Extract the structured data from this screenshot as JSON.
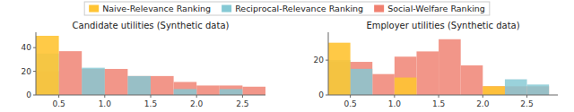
{
  "chart_data": [
    {
      "type": "histogram",
      "title": "Candidate utilities (Synthetic data)",
      "bins": [
        0.25,
        0.5,
        0.75,
        1.0,
        1.25,
        1.5,
        1.75,
        2.0,
        2.25,
        2.5,
        2.75
      ],
      "series": [
        {
          "name": "Naive-Relevance Ranking",
          "color": "#FFC433",
          "values": [
            50,
            0,
            0,
            0,
            0,
            0,
            0,
            0,
            0,
            0
          ]
        },
        {
          "name": "Reciprocal-Relevance Ranking",
          "color": "#85C9D4",
          "values": [
            35,
            0,
            23,
            0,
            16,
            0,
            5,
            0,
            5,
            0
          ]
        },
        {
          "name": "Social-Welfare Ranking",
          "color": "#F08070",
          "values": [
            20,
            37,
            22,
            22,
            16,
            16,
            11,
            8,
            8,
            7
          ]
        }
      ],
      "xlim": [
        0.25,
        2.75
      ],
      "xticks": [
        0.5,
        {
          "value": 1,
          "label": "1.0"
        },
        1.5,
        {
          "value": 2,
          "label": "2.0"
        },
        2.5
      ],
      "ylim": [
        0,
        53
      ],
      "yticks": [
        0,
        20,
        40
      ],
      "grid": false,
      "legend": "top"
    },
    {
      "type": "histogram",
      "title": "Employer utilities (Synthetic data)",
      "bins": [
        0.25,
        0.5,
        0.75,
        1.0,
        1.25,
        1.5,
        1.75,
        2.0,
        2.25,
        2.5,
        2.75
      ],
      "series": [
        {
          "name": "Naive-Relevance Ranking",
          "color": "#FFC433",
          "values": [
            30,
            0,
            0,
            10,
            0,
            0,
            0,
            5,
            0,
            0
          ]
        },
        {
          "name": "Reciprocal-Relevance Ranking",
          "color": "#85C9D4",
          "values": [
            20,
            15,
            0,
            0,
            0,
            0,
            0,
            0,
            9,
            6
          ]
        },
        {
          "name": "Social-Welfare Ranking",
          "color": "#F08070",
          "values": [
            19,
            19,
            12,
            22,
            25,
            32,
            17,
            5,
            5,
            5
          ]
        }
      ],
      "xlim": [
        0.25,
        2.85
      ],
      "xticks": [
        0.5,
        {
          "value": 1,
          "label": "1.0"
        },
        1.5,
        {
          "value": 2,
          "label": "2.0"
        },
        2.5
      ],
      "ylim": [
        0,
        36
      ],
      "yticks": [
        0,
        20
      ],
      "grid": false,
      "legend": "top"
    }
  ]
}
